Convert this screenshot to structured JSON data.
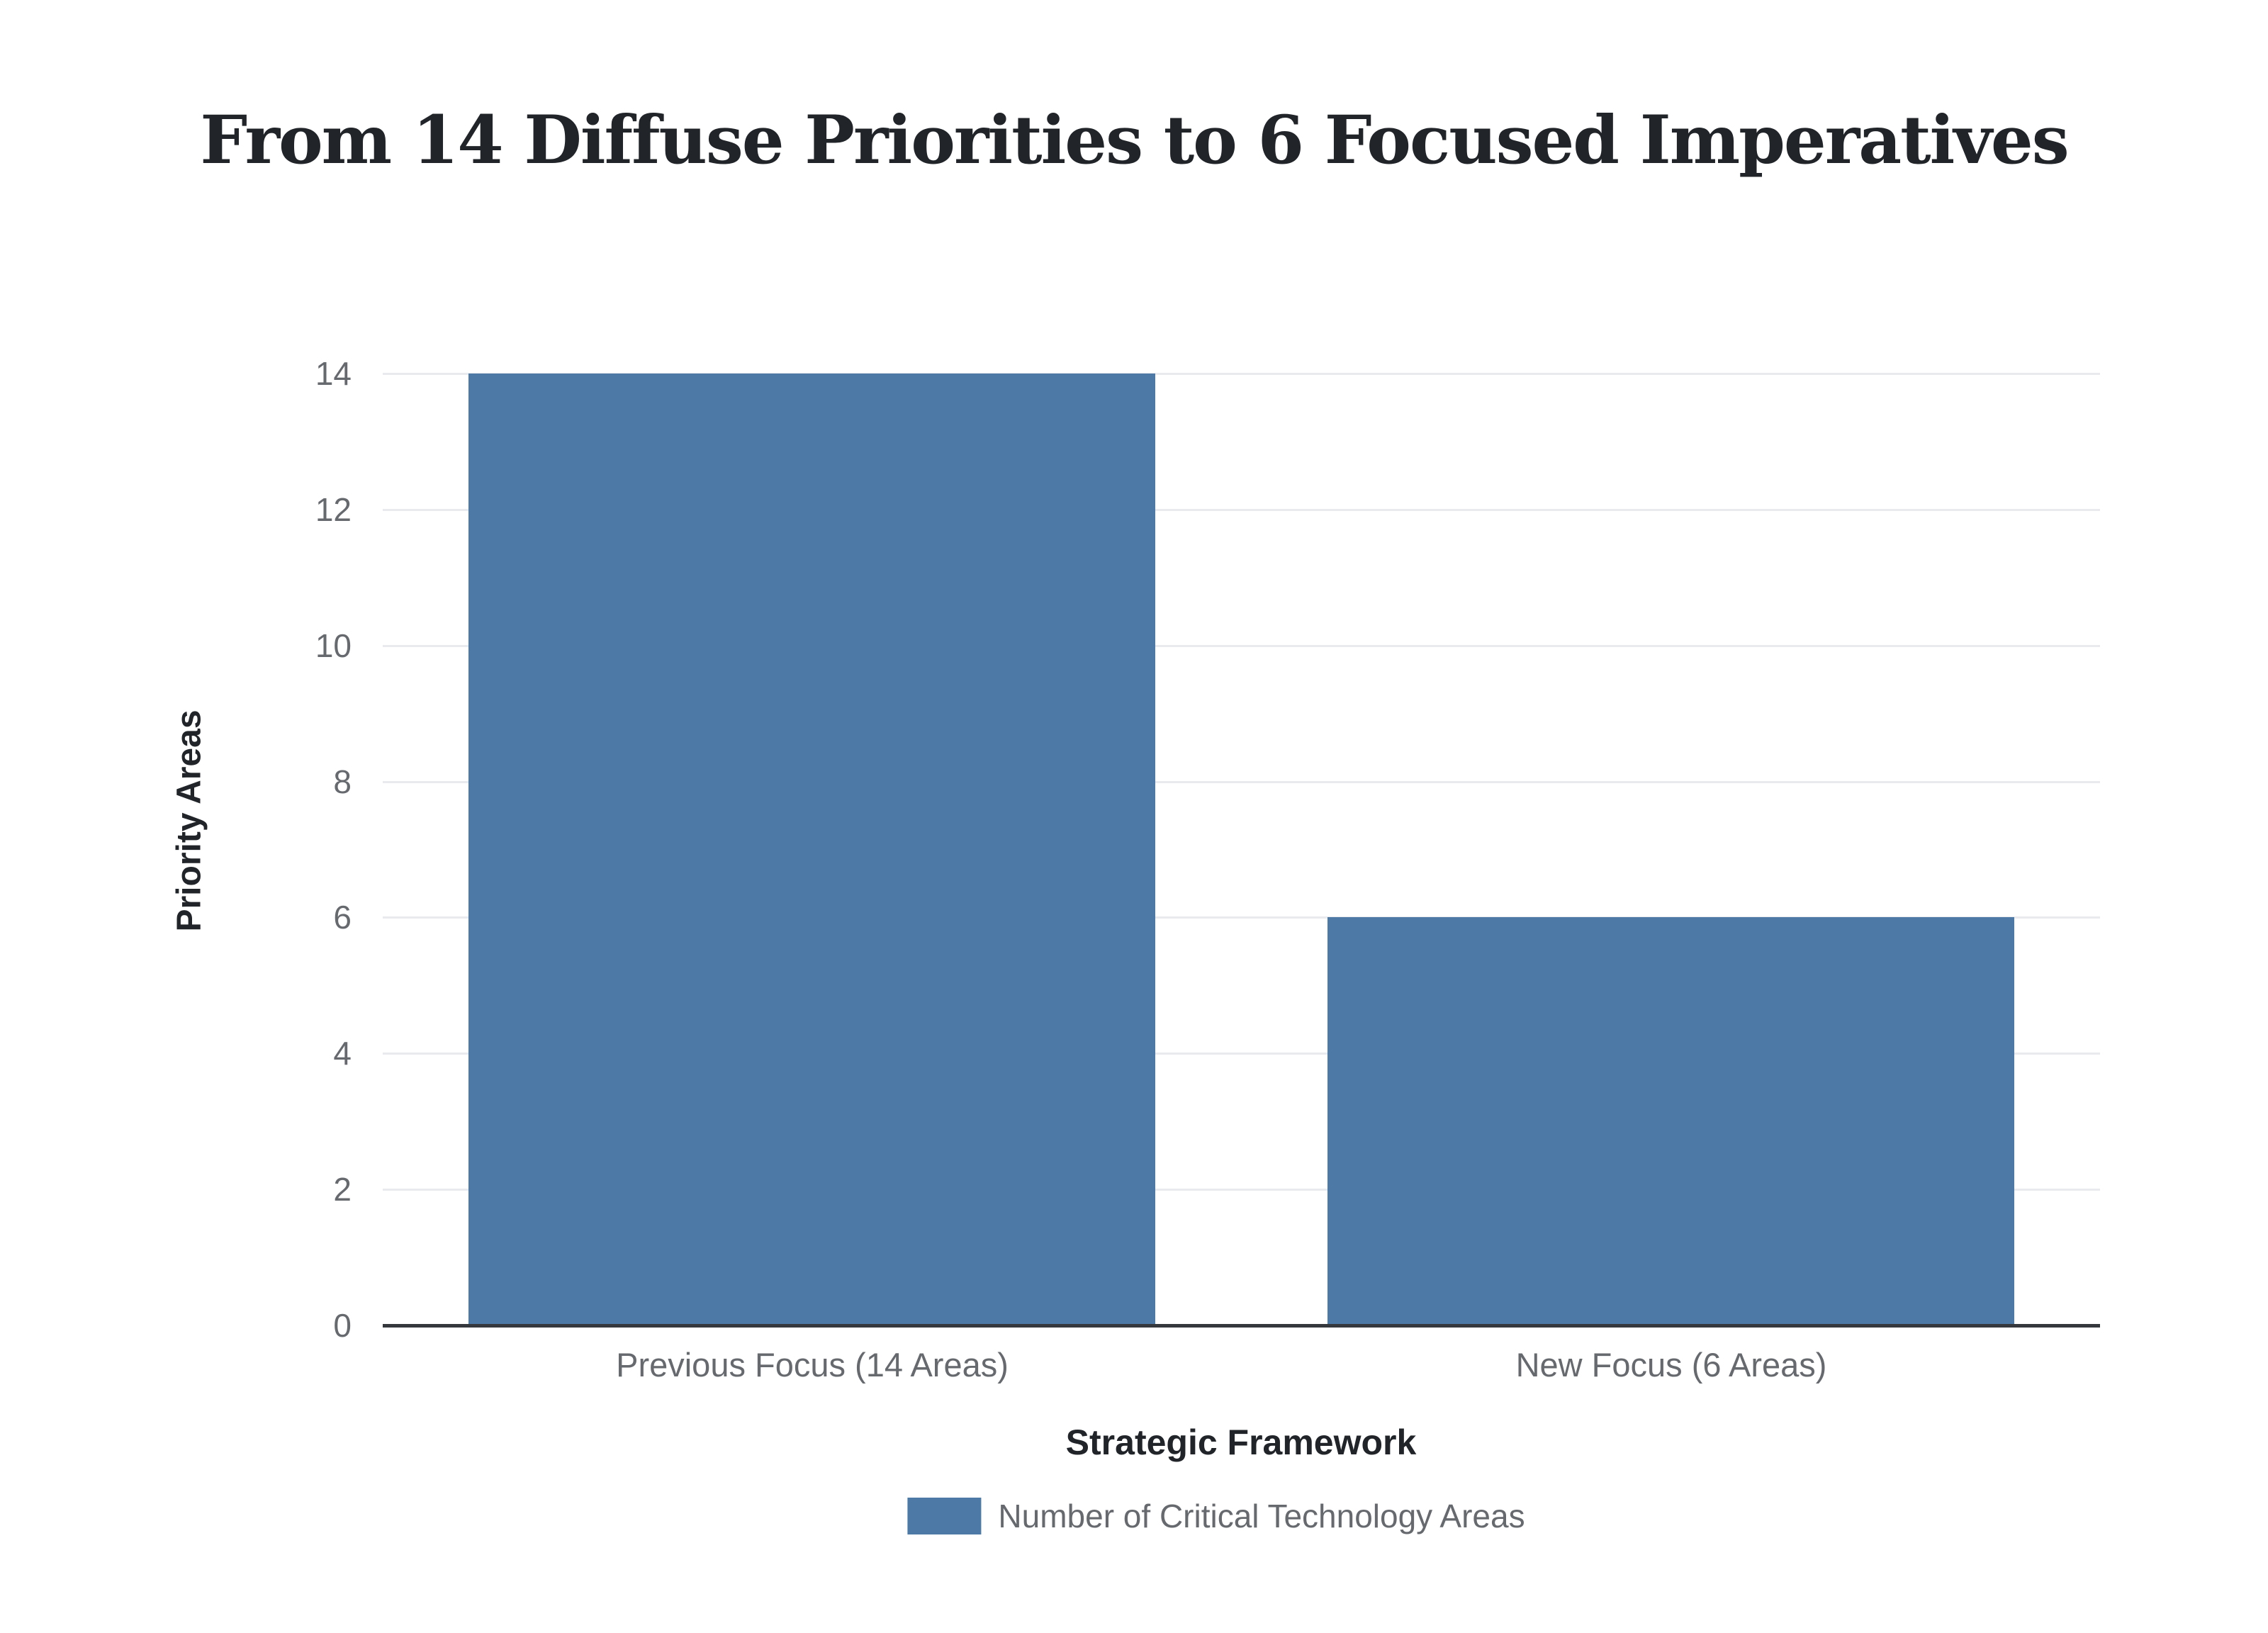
{
  "page_title": "From 14 Diffuse Priorities to 6 Focused Imperatives",
  "chart_data": {
    "type": "bar",
    "title": "From 14 Diffuse Priorities to 6 Focused Imperatives",
    "categories": [
      "Previous Focus (14 Areas)",
      "New Focus (6 Areas)"
    ],
    "values": [
      14,
      6
    ],
    "series": [
      {
        "name": "Number of Critical Technology Areas",
        "values": [
          14,
          6
        ]
      }
    ],
    "xlabel": "Strategic Framework",
    "ylabel": "Priority Areas",
    "ylim": [
      0,
      14
    ],
    "yticks": [
      0,
      2,
      4,
      6,
      8,
      10,
      12,
      14
    ],
    "grid": true,
    "legend_position": "bottom",
    "colors": {
      "bar": "#4d79a7",
      "gridline": "#e9eaee",
      "axis_line": "#35383c",
      "muted_text": "#66696e",
      "dark_text": "#212529",
      "background": "#ffffff"
    }
  },
  "legend": {
    "items": [
      {
        "label": "Number of Critical Technology Areas",
        "swatch_color": "#4d79a7"
      }
    ]
  }
}
